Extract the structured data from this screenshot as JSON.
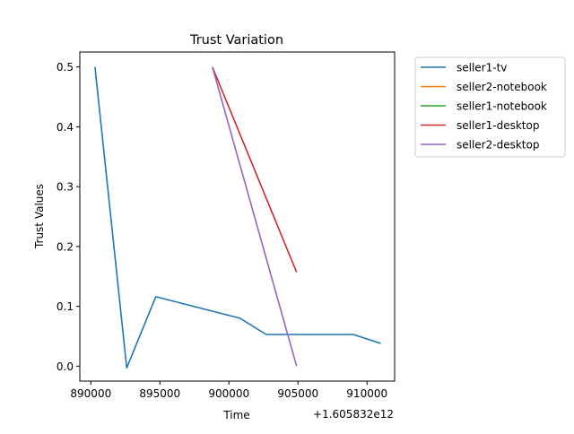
{
  "chart_data": {
    "type": "line",
    "title": "Trust Variation",
    "xlabel": "Time",
    "ylabel": "Trust Values",
    "x_offset_label": "+1.605832e12",
    "xlim": [
      889200,
      912000
    ],
    "ylim": [
      -0.025,
      0.525
    ],
    "x_ticks": [
      890000,
      895000,
      900000,
      905000,
      910000
    ],
    "x_tick_labels": [
      "890000",
      "895000",
      "900000",
      "905000",
      "910000"
    ],
    "y_ticks": [
      0.0,
      0.1,
      0.2,
      0.3,
      0.4,
      0.5
    ],
    "y_tick_labels": [
      "0.0",
      "0.1",
      "0.2",
      "0.3",
      "0.4",
      "0.5"
    ],
    "grid": false,
    "legend_position": "outside upper right",
    "series": [
      {
        "name": "seller1-tv",
        "color": "#1f77b4",
        "points": [
          [
            890300,
            0.5
          ],
          [
            892600,
            -0.003
          ],
          [
            894700,
            0.116
          ],
          [
            900800,
            0.08
          ],
          [
            902700,
            0.053
          ],
          [
            909000,
            0.053
          ],
          [
            911000,
            0.038
          ]
        ]
      },
      {
        "name": "seller2-notebook",
        "color": "#ff7f0e",
        "points": []
      },
      {
        "name": "seller1-notebook",
        "color": "#2ca02c",
        "points": []
      },
      {
        "name": "seller1-desktop",
        "color": "#d62728",
        "points": [
          [
            898800,
            0.5
          ],
          [
            904900,
            0.157
          ]
        ]
      },
      {
        "name": "seller2-desktop",
        "color": "#9467bd",
        "points": [
          [
            898800,
            0.5
          ],
          [
            904900,
            0.0
          ]
        ]
      }
    ]
  }
}
